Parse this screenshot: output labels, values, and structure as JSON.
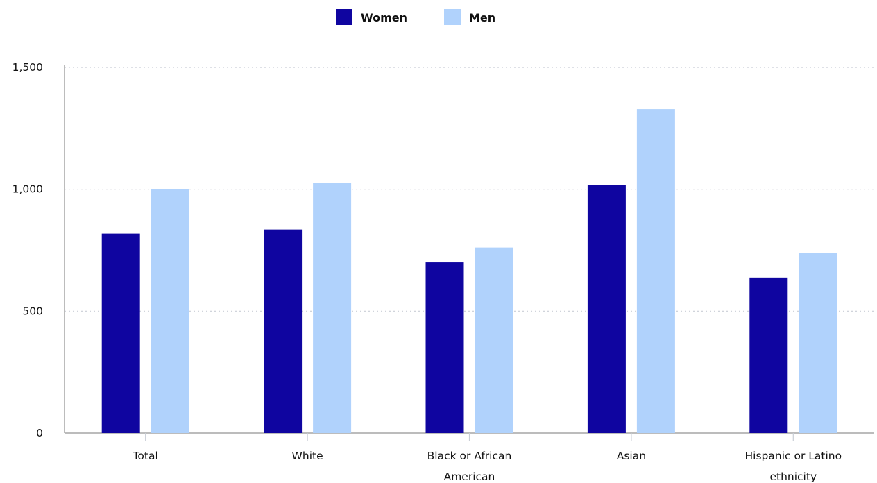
{
  "chart_data": {
    "type": "bar",
    "categories": [
      [
        "Total"
      ],
      [
        "White"
      ],
      [
        "Black or African",
        "American"
      ],
      [
        "Asian"
      ],
      [
        "Hispanic or Latino",
        "ethnicity"
      ]
    ],
    "series": [
      {
        "name": "Women",
        "color": "#0f05a0",
        "values": [
          818,
          835,
          700,
          1017,
          638
        ]
      },
      {
        "name": "Men",
        "color": "#b0d2fc",
        "values": [
          1000,
          1027,
          761,
          1329,
          740
        ]
      }
    ],
    "ylim": [
      0,
      1500
    ],
    "yticks": [
      0,
      500,
      1000,
      1500
    ],
    "ytick_labels": [
      "0",
      "500",
      "1,000",
      "1,500"
    ],
    "grid": true,
    "legend_position": "top-center",
    "title": "",
    "xlabel": "",
    "ylabel": ""
  }
}
